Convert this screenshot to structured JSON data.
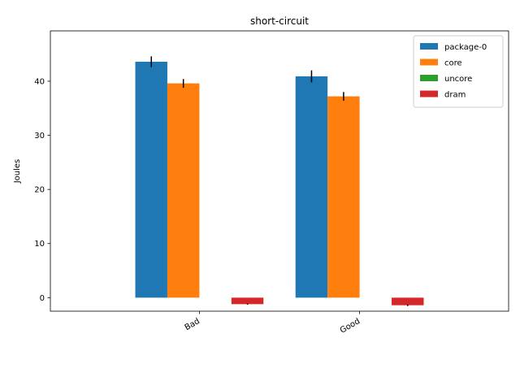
{
  "chart_data": {
    "type": "bar",
    "title": "short-circuit",
    "xlabel": "",
    "ylabel": "Joules",
    "categories": [
      "Bad",
      "Good"
    ],
    "ylim": [
      -2.5,
      49.3
    ],
    "yticks": [
      0,
      10,
      20,
      30,
      40
    ],
    "grid": false,
    "legend_position": "top-right",
    "series": [
      {
        "name": "package-0",
        "color": "#1f77b4",
        "values": [
          43.6,
          40.9
        ],
        "errors": [
          1.0,
          1.1
        ]
      },
      {
        "name": "core",
        "color": "#ff7f0e",
        "values": [
          39.6,
          37.2
        ],
        "errors": [
          0.8,
          0.8
        ]
      },
      {
        "name": "uncore",
        "color": "#2ca02c",
        "values": [
          0.0,
          0.0
        ],
        "errors": [
          0.0,
          0.0
        ]
      },
      {
        "name": "dram",
        "color": "#d62728",
        "values": [
          -1.2,
          -1.4
        ],
        "errors": [
          0.1,
          0.15
        ]
      }
    ]
  }
}
